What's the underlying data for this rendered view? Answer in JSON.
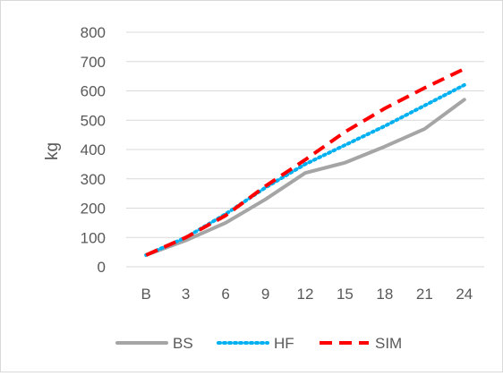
{
  "chart_data": {
    "type": "line",
    "title": "",
    "xlabel": "",
    "ylabel": "kg",
    "ylim": [
      0,
      800
    ],
    "yticks": [
      0,
      100,
      200,
      300,
      400,
      500,
      600,
      700,
      800
    ],
    "categories": [
      "B",
      "3",
      "6",
      "9",
      "12",
      "15",
      "18",
      "21",
      "24"
    ],
    "grid": "horizontal",
    "legend": "bottom",
    "series": [
      {
        "name": "BS",
        "color": "#a5a5a5",
        "style": "solid",
        "values": [
          40,
          90,
          150,
          230,
          320,
          355,
          410,
          470,
          570
        ]
      },
      {
        "name": "HF",
        "color": "#00b0f0",
        "style": "dotted",
        "values": [
          40,
          100,
          180,
          270,
          350,
          415,
          480,
          550,
          620
        ]
      },
      {
        "name": "SIM",
        "color": "#ff0000",
        "style": "dashed",
        "values": [
          40,
          100,
          175,
          275,
          365,
          460,
          540,
          610,
          675
        ]
      }
    ]
  }
}
